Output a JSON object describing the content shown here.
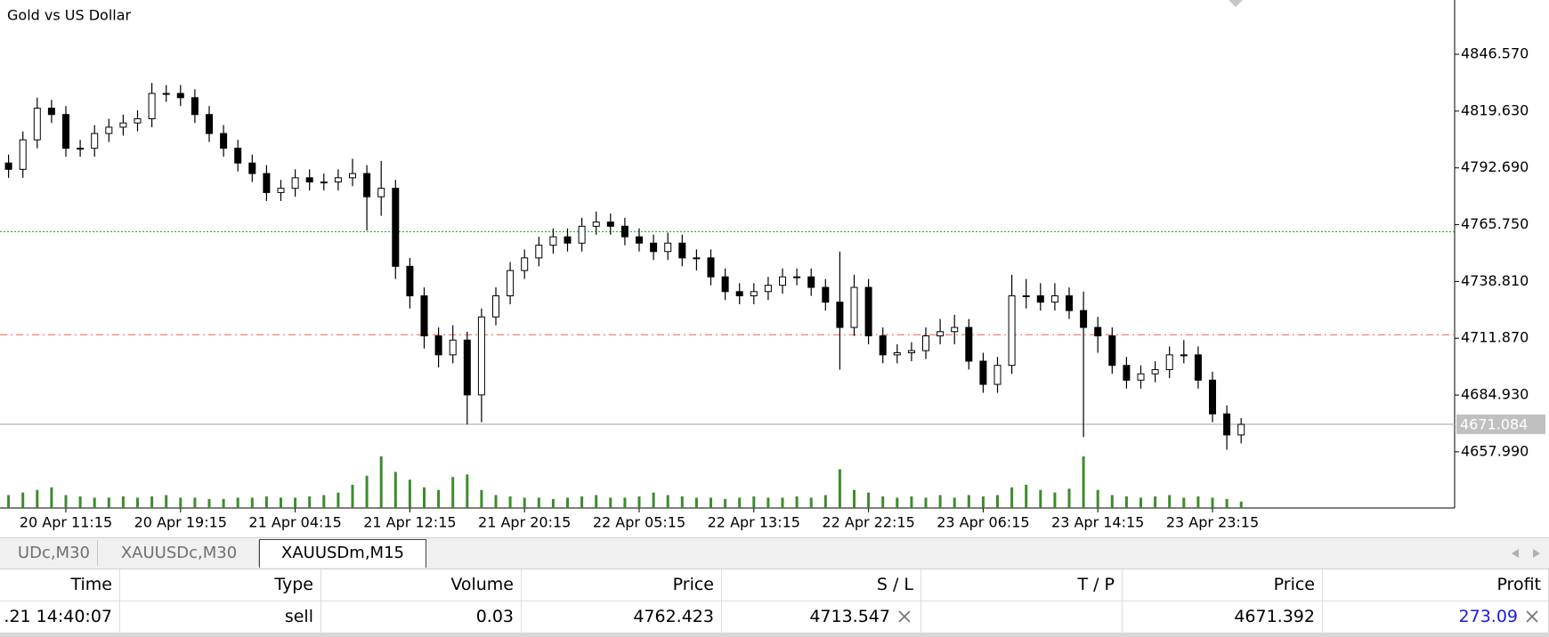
{
  "chart_data": {
    "type": "candlestick",
    "title": "Gold vs US Dollar",
    "categories": [
      null,
      null,
      null,
      null,
      null,
      "20 Apr 11:15",
      null,
      null,
      null,
      null,
      null,
      null,
      null,
      "20 Apr 19:15",
      null,
      null,
      null,
      null,
      null,
      null,
      null,
      "21 Apr 04:15",
      null,
      null,
      null,
      null,
      null,
      null,
      null,
      "21 Apr 12:15",
      null,
      null,
      null,
      null,
      null,
      null,
      null,
      "21 Apr 20:15",
      null,
      null,
      null,
      null,
      null,
      null,
      null,
      "22 Apr 05:15",
      null,
      null,
      null,
      null,
      null,
      null,
      null,
      "22 Apr 13:15",
      null,
      null,
      null,
      null,
      null,
      null,
      null,
      "22 Apr 22:15",
      null,
      null,
      null,
      null,
      null,
      null,
      null,
      "23 Apr 06:15",
      null,
      null,
      null,
      null,
      null,
      null,
      null,
      "23 Apr 14:15",
      null,
      null,
      null,
      null,
      null,
      null,
      null,
      "23 Apr 23:15",
      null,
      null
    ],
    "open": [
      4797,
      4795,
      4792,
      4806,
      4821,
      4818,
      4802,
      4802,
      4809,
      4812,
      4814,
      4816,
      4828,
      4828,
      4826,
      4818,
      4809,
      4802,
      4795,
      4790,
      4781,
      4783,
      4788,
      4786,
      4786,
      4788,
      4790,
      4779,
      4783,
      4746,
      4732,
      4713,
      4704,
      4711,
      4685,
      4722,
      4732,
      4744,
      4750,
      4756,
      4760,
      4757,
      4765,
      4767,
      4765,
      4760,
      4757,
      4753,
      4757,
      4750,
      4750,
      4741,
      4734,
      4732,
      4734,
      4737,
      4741,
      4741,
      4736,
      4729,
      4717,
      4736,
      4713,
      4704,
      4705,
      4706,
      4713,
      4715,
      4717,
      4701,
      4690,
      4699,
      4732,
      4732,
      4729,
      4732,
      4725,
      4717,
      4713,
      4699,
      4692,
      4695,
      4697,
      4704,
      4704,
      4692,
      4676,
      4666
    ],
    "high": [
      4801,
      4799,
      4810,
      4826,
      4825,
      4822,
      4806,
      4813,
      4816,
      4818,
      4820,
      4833,
      4832,
      4832,
      4830,
      4822,
      4813,
      4806,
      4799,
      4794,
      4787,
      4792,
      4792,
      4790,
      4792,
      4797,
      4794,
      4796,
      4787,
      4750,
      4736,
      4717,
      4718,
      4715,
      4726,
      4736,
      4748,
      4754,
      4760,
      4764,
      4764,
      4769,
      4772,
      4771,
      4769,
      4764,
      4761,
      4762,
      4761,
      4754,
      4754,
      4745,
      4738,
      4738,
      4741,
      4745,
      4745,
      4745,
      4740,
      4753,
      4742,
      4740,
      4717,
      4709,
      4710,
      4717,
      4721,
      4723,
      4721,
      4705,
      4703,
      4742,
      4740,
      4738,
      4738,
      4736,
      4734,
      4722,
      4717,
      4703,
      4699,
      4701,
      4708,
      4711,
      4708,
      4696,
      4680,
      4674
    ],
    "low": [
      4791,
      4788,
      4788,
      4802,
      4814,
      4798,
      4798,
      4798,
      4805,
      4808,
      4810,
      4812,
      4824,
      4822,
      4814,
      4805,
      4798,
      4791,
      4786,
      4777,
      4777,
      4779,
      4782,
      4782,
      4782,
      4784,
      4763,
      4770,
      4740,
      4726,
      4707,
      4698,
      4700,
      4671,
      4672,
      4718,
      4728,
      4740,
      4746,
      4752,
      4753,
      4753,
      4761,
      4761,
      4756,
      4753,
      4749,
      4749,
      4746,
      4744,
      4737,
      4730,
      4728,
      4728,
      4730,
      4733,
      4737,
      4732,
      4725,
      4697,
      4713,
      4709,
      4700,
      4700,
      4701,
      4702,
      4709,
      4709,
      4697,
      4686,
      4686,
      4695,
      4726,
      4725,
      4725,
      4721,
      4665,
      4705,
      4695,
      4688,
      4688,
      4691,
      4693,
      4700,
      4688,
      4672,
      4659,
      4662
    ],
    "close": [
      4795,
      4792,
      4806,
      4821,
      4818,
      4802,
      4802,
      4809,
      4812,
      4814,
      4816,
      4828,
      4828,
      4826,
      4818,
      4809,
      4802,
      4795,
      4790,
      4781,
      4783,
      4788,
      4786,
      4786,
      4788,
      4790,
      4779,
      4783,
      4746,
      4732,
      4713,
      4704,
      4711,
      4685,
      4722,
      4732,
      4744,
      4750,
      4756,
      4760,
      4757,
      4765,
      4767,
      4765,
      4760,
      4757,
      4753,
      4757,
      4750,
      4750,
      4741,
      4734,
      4732,
      4734,
      4737,
      4741,
      4741,
      4736,
      4729,
      4717,
      4736,
      4713,
      4704,
      4705,
      4706,
      4713,
      4715,
      4717,
      4701,
      4690,
      4699,
      4732,
      4732,
      4729,
      4732,
      4725,
      4717,
      4713,
      4699,
      4692,
      4695,
      4697,
      4704,
      4704,
      4692,
      4676,
      4666,
      4671
    ],
    "volume": [
      8,
      10,
      12,
      14,
      16,
      10,
      9,
      8,
      8,
      9,
      8,
      9,
      10,
      8,
      8,
      7,
      7,
      8,
      8,
      9,
      8,
      8,
      9,
      10,
      12,
      18,
      25,
      40,
      28,
      22,
      16,
      14,
      24,
      26,
      14,
      10,
      9,
      8,
      8,
      7,
      8,
      9,
      10,
      8,
      8,
      9,
      12,
      10,
      9,
      8,
      8,
      7,
      8,
      9,
      8,
      8,
      9,
      8,
      10,
      30,
      14,
      12,
      9,
      8,
      9,
      8,
      10,
      8,
      10,
      9,
      10,
      16,
      18,
      14,
      12,
      15,
      40,
      14,
      10,
      9,
      8,
      9,
      10,
      8,
      9,
      8,
      7,
      5
    ],
    "volume_color": "#3c8c2c",
    "ylim": [
      4631.35,
      4872.33
    ],
    "yticks": [
      {
        "value": 4846.57,
        "label": "4846.570"
      },
      {
        "value": 4819.63,
        "label": "4819.630"
      },
      {
        "value": 4792.69,
        "label": "4792.690"
      },
      {
        "value": 4765.75,
        "label": "4765.750"
      },
      {
        "value": 4738.81,
        "label": "4738.810"
      },
      {
        "value": 4711.87,
        "label": "4711.870"
      },
      {
        "value": 4684.93,
        "label": "4684.930"
      },
      {
        "value": 4657.99,
        "label": "4657.990"
      }
    ],
    "levels": [
      {
        "value": 4762.423,
        "color": "#2e8b2e",
        "style": "dotted"
      },
      {
        "value": 4713.547,
        "color": "#f4603c",
        "style": "dash-dot"
      }
    ],
    "bid": {
      "value": 4671.084,
      "color": "#c0c0c0"
    }
  },
  "tabs": [
    "UDc,M30",
    "XAUUSDc,M30",
    "XAUUSDm,M15"
  ],
  "table": {
    "headers": [
      "Time",
      "Type",
      "Volume",
      "Price",
      "S / L",
      "T / P",
      "Price",
      "Profit"
    ],
    "rows": [
      [
        ".21 14:40:07",
        "sell",
        "0.03",
        "4762.423",
        "4713.547",
        "",
        "4671.392",
        "273.09"
      ]
    ]
  }
}
